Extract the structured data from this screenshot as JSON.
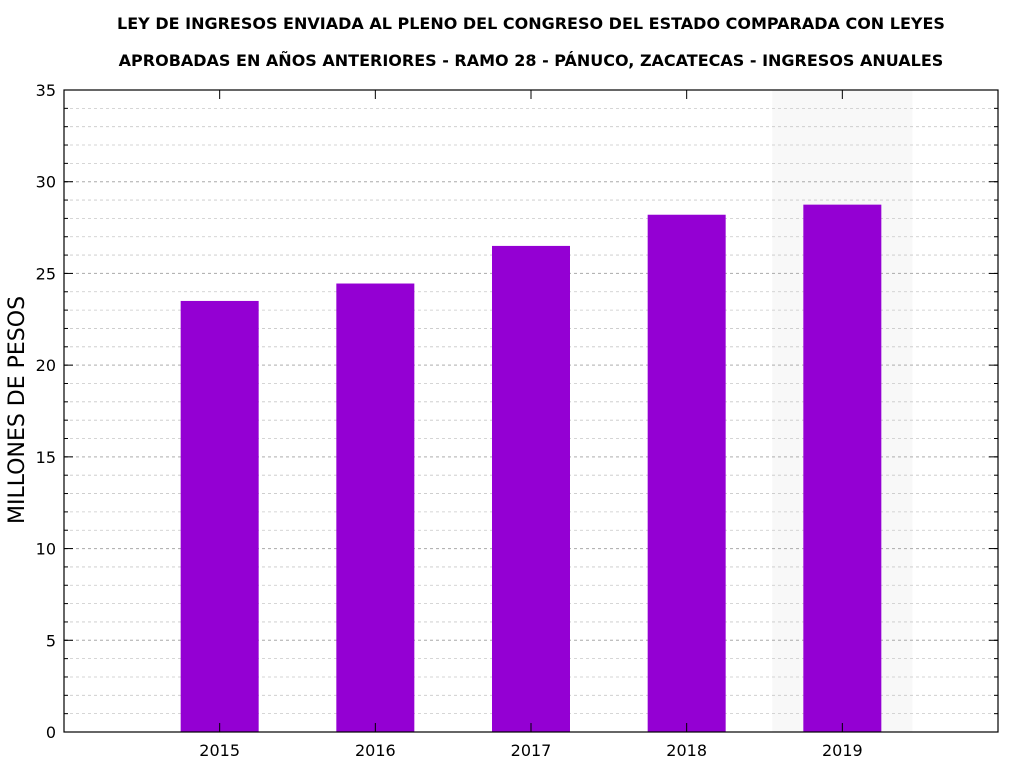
{
  "chart_data": {
    "type": "bar",
    "title_line1": "LEY DE INGRESOS ENVIADA AL PLENO DEL CONGRESO DEL ESTADO COMPARADA CON LEYES",
    "title_line2": "APROBADAS EN AÑOS ANTERIORES -  RAMO 28 - PÁNUCO, ZACATECAS - INGRESOS ANUALES",
    "ylabel": "MILLONES DE PESOS",
    "xlabel": "",
    "categories": [
      "2015",
      "2016",
      "2017",
      "2018",
      "2019"
    ],
    "values": [
      23.5,
      24.45,
      26.5,
      28.2,
      28.75
    ],
    "ylim": [
      0,
      35
    ],
    "yticks": [
      0,
      5,
      10,
      15,
      20,
      25,
      30,
      35
    ],
    "minor_grid_step": 1,
    "grid": true,
    "highlight_category": "2019",
    "bar_color": "#9400d3",
    "highlight_bg_color": "#f8f8f8"
  }
}
